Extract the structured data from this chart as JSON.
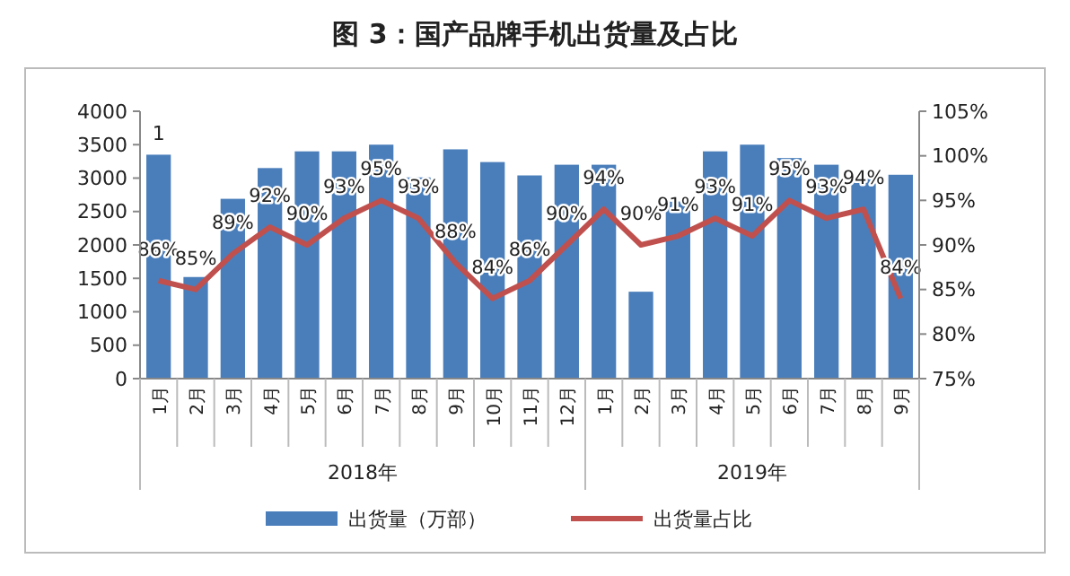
{
  "chart_data": {
    "type": "bar",
    "title": "图 3：国产品牌手机出货量及占比",
    "categories": [
      "1月",
      "2月",
      "3月",
      "4月",
      "5月",
      "6月",
      "7月",
      "8月",
      "9月",
      "10月",
      "11月",
      "12月",
      "1月",
      "2月",
      "3月",
      "4月",
      "5月",
      "6月",
      "7月",
      "8月",
      "9月"
    ],
    "series": [
      {
        "name": "出货量（万部）",
        "color": "#4a7ebb",
        "values": [
          3350,
          1520,
          2690,
          3150,
          3400,
          3400,
          3500,
          3010,
          3430,
          3240,
          3040,
          3200,
          3200,
          1300,
          2650,
          3400,
          3500,
          3300,
          3200,
          3000,
          3050
        ]
      },
      {
        "name": "出货量占比",
        "type": "line",
        "axis": "y2",
        "color": "#c0504d",
        "values": [
          86,
          85,
          89,
          92,
          90,
          93,
          95,
          93,
          88,
          84,
          86,
          90,
          94,
          90,
          91,
          93,
          91,
          95,
          93,
          94,
          84
        ],
        "value_labels": [
          "86%",
          "85%",
          "89%",
          "92%",
          "90%",
          "93%",
          "95%",
          "93%",
          "88%",
          "84%",
          "86%",
          "90%",
          "94%",
          "90%",
          "91%",
          "93%",
          "91%",
          "95%",
          "93%",
          "94%",
          "84%"
        ]
      }
    ],
    "ylim": [
      0,
      4000
    ],
    "yticks": [
      0,
      500,
      1000,
      1500,
      2000,
      2500,
      3000,
      3500,
      4000
    ],
    "y2lim": [
      75,
      105
    ],
    "y2ticks": [
      {
        "value": 75,
        "label": "75%"
      },
      {
        "value": 80,
        "label": "80%"
      },
      {
        "value": 85,
        "label": "85%"
      },
      {
        "value": 90,
        "label": "90%"
      },
      {
        "value": 95,
        "label": "95%"
      },
      {
        "value": 100,
        "label": "100%"
      },
      {
        "value": 105,
        "label": "105%"
      }
    ],
    "annotations": [
      "1",
      "2018年",
      "2019年"
    ],
    "legend": "bottom",
    "marker": "none",
    "line_style": "solid"
  }
}
